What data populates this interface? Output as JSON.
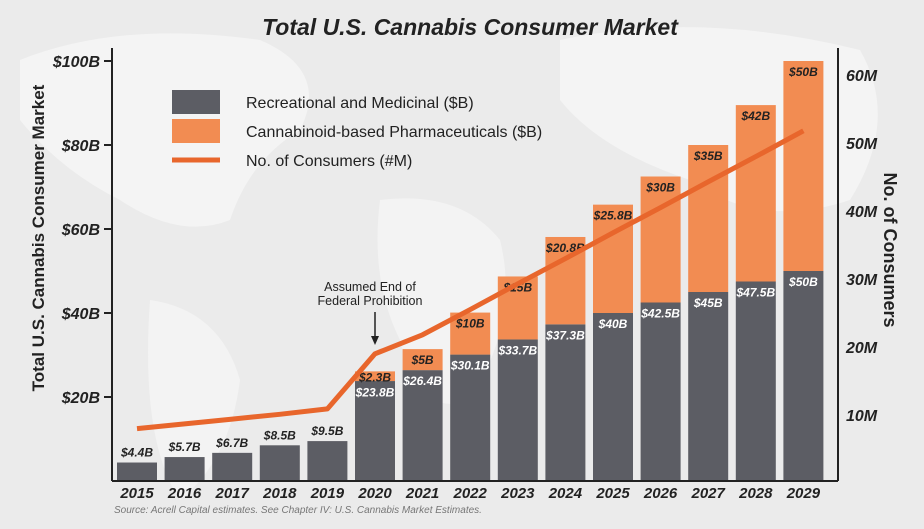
{
  "chart_data": {
    "type": "bar",
    "stacked": true,
    "title": "Total U.S. Cannabis Consumer Market",
    "ylabel": "Total U.S. Cannabis Consumer Market",
    "y2label": "No. of Consumers",
    "ylim": [
      0,
      100
    ],
    "y2lim": [
      0,
      60
    ],
    "yticks": [
      "$20B",
      "$40B",
      "$60B",
      "$80B",
      "$100B"
    ],
    "ytick_values": [
      20,
      40,
      60,
      80,
      100
    ],
    "y2ticks": [
      "10M",
      "20M",
      "30M",
      "40M",
      "50M",
      "60M"
    ],
    "y2tick_values": [
      10,
      20,
      30,
      40,
      50,
      60
    ],
    "categories": [
      "2015",
      "2016",
      "2017",
      "2018",
      "2019",
      "2020",
      "2021",
      "2022",
      "2023",
      "2024",
      "2025",
      "2026",
      "2027",
      "2028",
      "2029"
    ],
    "series": [
      {
        "name": "Recreational and Medicinal ($B)",
        "kind": "bar",
        "color": "#5c5d64",
        "values": [
          4.4,
          5.7,
          6.7,
          8.5,
          9.5,
          23.8,
          26.4,
          30.1,
          33.7,
          37.3,
          40,
          42.5,
          45,
          47.5,
          50
        ],
        "labels": [
          "$4.4B",
          "$5.7B",
          "$6.7B",
          "$8.5B",
          "$9.5B",
          "$23.8B",
          "$26.4B",
          "$30.1B",
          "$33.7B",
          "$37.3B",
          "$40B",
          "$42.5B",
          "$45B",
          "$47.5B",
          "$50B"
        ]
      },
      {
        "name": "Cannabinoid-based Pharmaceuticals ($B)",
        "kind": "bar",
        "color": "#f28c52",
        "values": [
          0,
          0,
          0,
          0,
          0,
          2.3,
          5,
          10,
          15,
          20.8,
          25.8,
          30,
          35,
          42,
          50
        ],
        "labels": [
          "",
          "",
          "",
          "",
          "",
          "$2.3B",
          "$5B",
          "$10B",
          "$15B",
          "$20.8B",
          "$25.8B",
          "$30B",
          "$35B",
          "$42B",
          "$50B"
        ]
      },
      {
        "name": "No. of Consumers (#M)",
        "kind": "line",
        "axis": "right",
        "color": "#e8662c",
        "values": [
          8,
          8.7,
          9.4,
          10.1,
          10.9,
          19,
          21.8,
          25.5,
          29.3,
          33,
          36.8,
          40.5,
          44.3,
          48,
          51.8
        ]
      }
    ],
    "annotation": {
      "lines": [
        "Assumed End of",
        "Federal Prohibition"
      ],
      "category": "2020"
    },
    "legend_placement": "top-left",
    "grid": false,
    "source": "Source: Acrell Capital estimates. See Chapter IV: U.S. Cannabis Market Estimates."
  }
}
